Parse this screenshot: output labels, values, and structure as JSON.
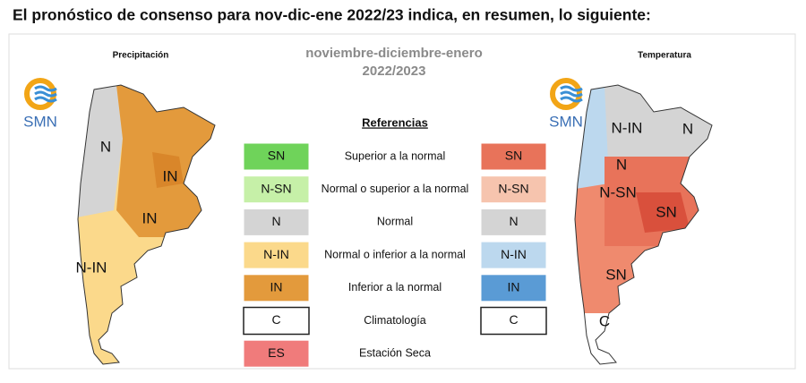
{
  "header": {
    "title": "El pronóstico de consenso para  nov-dic-ene 2022/23 indica, en resumen, lo siguiente:"
  },
  "panel": {
    "period_title": "noviembre-diciembre-enero",
    "period_year": "2022/2023"
  },
  "left_map": {
    "title": "Precipitación",
    "logo": "SMN",
    "region_labels": [
      "N",
      "IN",
      "IN",
      "N-IN"
    ]
  },
  "right_map": {
    "title": "Temperatura",
    "logo": "SMN",
    "region_labels": [
      "N-IN",
      "N",
      "N",
      "N-SN",
      "SN",
      "SN",
      "C"
    ]
  },
  "legend": {
    "title": "Referencias",
    "rows": [
      {
        "left_code": "SN",
        "description": "Superior a la normal",
        "right_code": "SN"
      },
      {
        "left_code": "N-SN",
        "description": "Normal o superior a la normal",
        "right_code": "N-SN"
      },
      {
        "left_code": "N",
        "description": "Normal",
        "right_code": "N"
      },
      {
        "left_code": "N-IN",
        "description": "Normal o inferior a la normal",
        "right_code": "N-IN"
      },
      {
        "left_code": "IN",
        "description": "Inferior a la normal",
        "right_code": "IN"
      },
      {
        "left_code": "C",
        "description": "Climatología",
        "right_code": "C"
      },
      {
        "left_code": "ES",
        "description": "Estación Seca"
      }
    ]
  }
}
